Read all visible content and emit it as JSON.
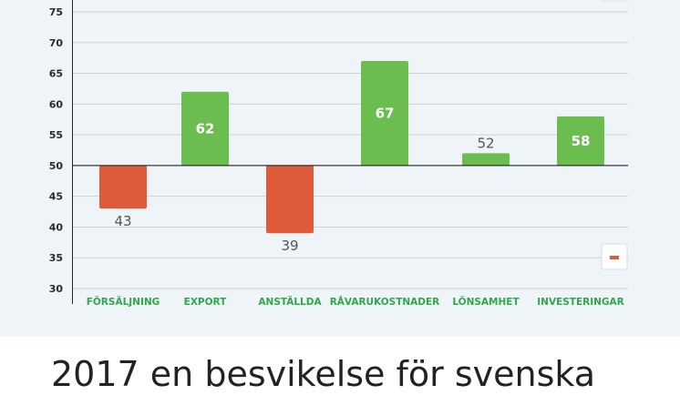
{
  "chart_data": {
    "type": "bar",
    "baseline": 50,
    "ylim": [
      30,
      78
    ],
    "yticks": [
      30,
      35,
      40,
      45,
      50,
      55,
      60,
      65,
      70,
      75
    ],
    "categories": [
      "FÖRSÄLJNING",
      "EXPORT",
      "ANSTÄLLDA",
      "RÅVARUKOSTNADER",
      "LÖNSAMHET",
      "INVESTERINGAR"
    ],
    "values": [
      43,
      62,
      39,
      67,
      52,
      58
    ],
    "data_labels": [
      "43",
      "62",
      "39",
      "67",
      "52",
      "58"
    ],
    "grid": true,
    "colors": {
      "negative": "#dd5b3a",
      "positive": "#6cbd4f",
      "grid": "#c9d3d8",
      "category_text": "#2ea84a"
    },
    "legend": {
      "position": "right",
      "items": [
        {
          "label": "–",
          "color": "#dd5b3a"
        }
      ]
    }
  },
  "headline": "2017 en besvikelse för svenska"
}
